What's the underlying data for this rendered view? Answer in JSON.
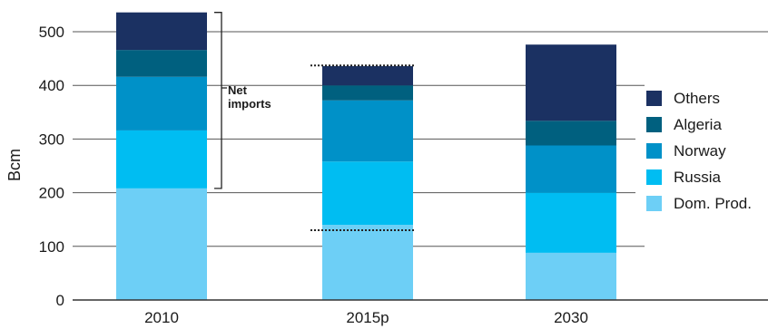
{
  "chart_data": {
    "type": "bar",
    "stacked": true,
    "categories": [
      "2010",
      "2015p",
      "2030"
    ],
    "series": [
      {
        "name": "Dom. Prod.",
        "color": "#6dcff6",
        "values": [
          208,
          140,
          88
        ]
      },
      {
        "name": "Russia",
        "color": "#00bdf2",
        "values": [
          108,
          118,
          112
        ]
      },
      {
        "name": "Norway",
        "color": "#0091c8",
        "values": [
          100,
          114,
          88
        ]
      },
      {
        "name": "Algeria",
        "color": "#00607f",
        "values": [
          50,
          28,
          46
        ]
      },
      {
        "name": "Others",
        "color": "#1b3162",
        "values": [
          70,
          36,
          142
        ]
      }
    ],
    "ylabel": "Bcm",
    "xlabel": "",
    "ylim": [
      0,
      540
    ],
    "yticks": [
      0,
      100,
      200,
      300,
      400,
      500
    ],
    "grid": true,
    "legend_position": "right",
    "legend_order": [
      "Others",
      "Algeria",
      "Norway",
      "Russia",
      "Dom. Prod."
    ],
    "annotations": [
      {
        "text_lines": [
          "Net",
          "imports"
        ],
        "type": "bracket",
        "category": "2010",
        "range": [
          208,
          536
        ]
      },
      {
        "type": "dotted-reference-lines",
        "category": "2015p",
        "values": [
          437,
          130
        ]
      }
    ]
  }
}
